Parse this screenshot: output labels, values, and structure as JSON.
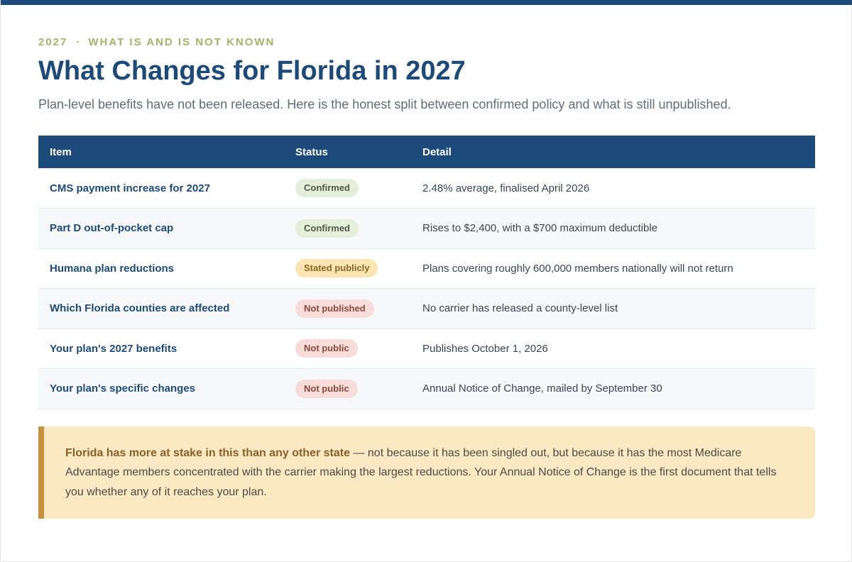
{
  "header": {
    "year": "2027",
    "separator": "·",
    "eyebrow": "WHAT IS AND IS NOT KNOWN",
    "title": "What Changes for Florida in 2027",
    "subtitle": "Plan-level benefits have not been released. Here is the honest split between confirmed policy and what is still unpublished."
  },
  "table": {
    "columns": [
      "Item",
      "Status",
      "Detail"
    ],
    "rows": [
      {
        "item": "CMS payment increase for 2027",
        "status": "Confirmed",
        "detail": "2.48% average, finalised April 2026"
      },
      {
        "item": "Part D out-of-pocket cap",
        "status": "Confirmed",
        "detail": "Rises to $2,400, with a $700 maximum deductible"
      },
      {
        "item": "Humana plan reductions",
        "status": "Stated publicly",
        "detail": "Plans covering roughly 600,000 members nationally will not return"
      },
      {
        "item": "Which Florida counties are affected",
        "status": "Not published",
        "detail": "No carrier has released a county-level list"
      },
      {
        "item": "Your plan's 2027 benefits",
        "status": "Not public",
        "detail": "Publishes October 1, 2026"
      },
      {
        "item": "Your plan's specific changes",
        "status": "Not public",
        "detail": "Annual Notice of Change, mailed by September 30"
      }
    ]
  },
  "callout": {
    "lead": "Florida has more at stake in this than any other state",
    "body": " — not because it has been singled out, but because it has the most Medicare Advantage members concentrated with the carrier making the largest reductions. Your Annual Notice of Change is the first document that tells you whether any of it reaches your plan."
  },
  "colors": {
    "primary": "#1c4a7a",
    "eyebrow": "#a3b36a",
    "confirmed_bg": "#e3eedb",
    "stated_bg": "#fae5b3",
    "not_published_bg": "#f7dcd9",
    "callout_bg": "#fbe9c4",
    "callout_border": "#c8913e"
  }
}
